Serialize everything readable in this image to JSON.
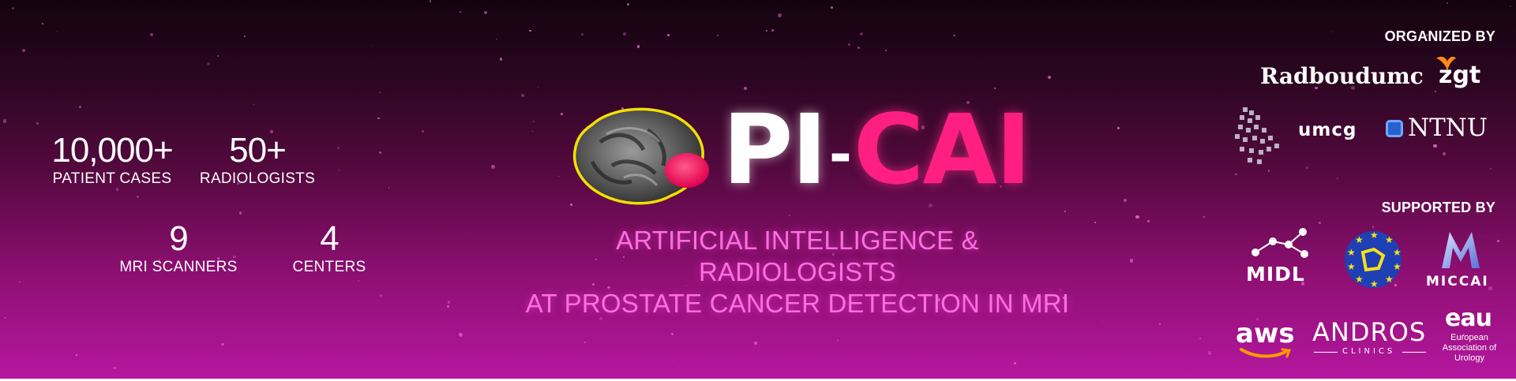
{
  "title": {
    "pi": "PI",
    "dash": "-",
    "cai": "CAI"
  },
  "subtitle": {
    "line1": "ARTIFICIAL INTELLIGENCE & RADIOLOGISTS",
    "line2": "AT PROSTATE CANCER DETECTION IN MRI"
  },
  "stats": [
    {
      "value": "10,000+",
      "label": "PATIENT CASES"
    },
    {
      "value": "50+",
      "label": "RADIOLOGISTS"
    },
    {
      "value": "9",
      "label": "MRI SCANNERS"
    },
    {
      "value": "4",
      "label": "CENTERS"
    }
  ],
  "organized_by": {
    "label": "ORGANIZED BY",
    "logos": [
      "Radboudumc",
      "zgt",
      "umcg",
      "NTNU"
    ]
  },
  "supported_by": {
    "label": "SUPPORTED BY",
    "logos": [
      "MIDL",
      "MICCAI",
      "aws",
      "ANDROS",
      "CLINICS",
      "eau"
    ],
    "eau_name": "European Association of Urology"
  },
  "icons": [
    "prostate-mri-icon",
    "zgt-mark-icon",
    "umcg-mark-icon",
    "ntnu-mark-icon",
    "midl-network-icon",
    "esur-stars-icon",
    "miccai-mark-icon",
    "aws-smile-icon"
  ],
  "colors": {
    "accent_pink": "#ff1f82",
    "subtitle_pink": "#ff6ee0",
    "lesion": "#ff2a6d",
    "outline": "#f2e000"
  }
}
